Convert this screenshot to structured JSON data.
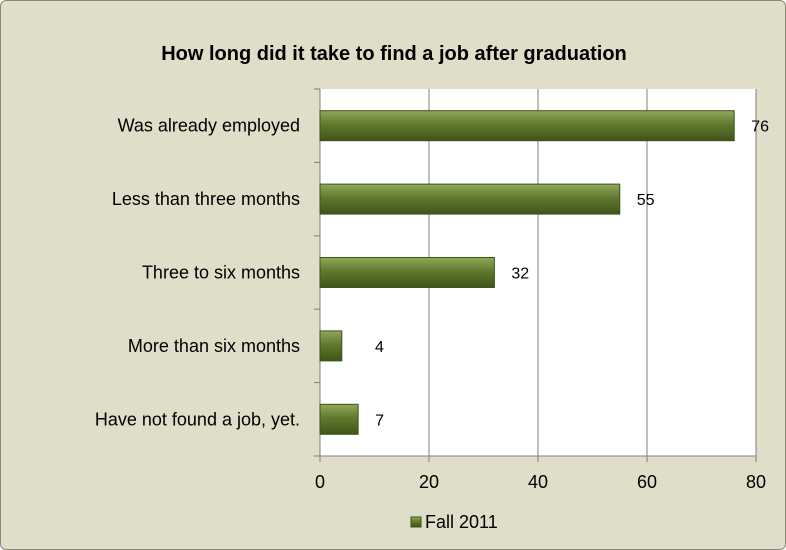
{
  "chart_data": {
    "type": "bar",
    "orientation": "horizontal",
    "title": "How long did it take to find a job after graduation",
    "categories": [
      "Was already employed",
      "Less than three months",
      "Three to six months",
      "More than six months",
      "Have not found a job, yet."
    ],
    "series": [
      {
        "name": "Fall 2011",
        "values": [
          76,
          55,
          32,
          4,
          7
        ]
      }
    ],
    "data_labels": [
      "76",
      "55",
      "32",
      "4",
      "7"
    ],
    "xlim": [
      0,
      80
    ],
    "x_ticks": [
      0,
      20,
      40,
      60,
      80
    ],
    "x_tick_labels": [
      "0",
      "20",
      "40",
      "60",
      "80"
    ],
    "grid": "vertical",
    "legend": "bottom",
    "colors": {
      "bar": "#5f7a2e",
      "bar_dark": "#3f5418",
      "bar_light": "#8fa85a",
      "plot_bg": "#ffffff",
      "chart_bg": "#e0ddc8",
      "grid": "#7f7f7f"
    }
  }
}
